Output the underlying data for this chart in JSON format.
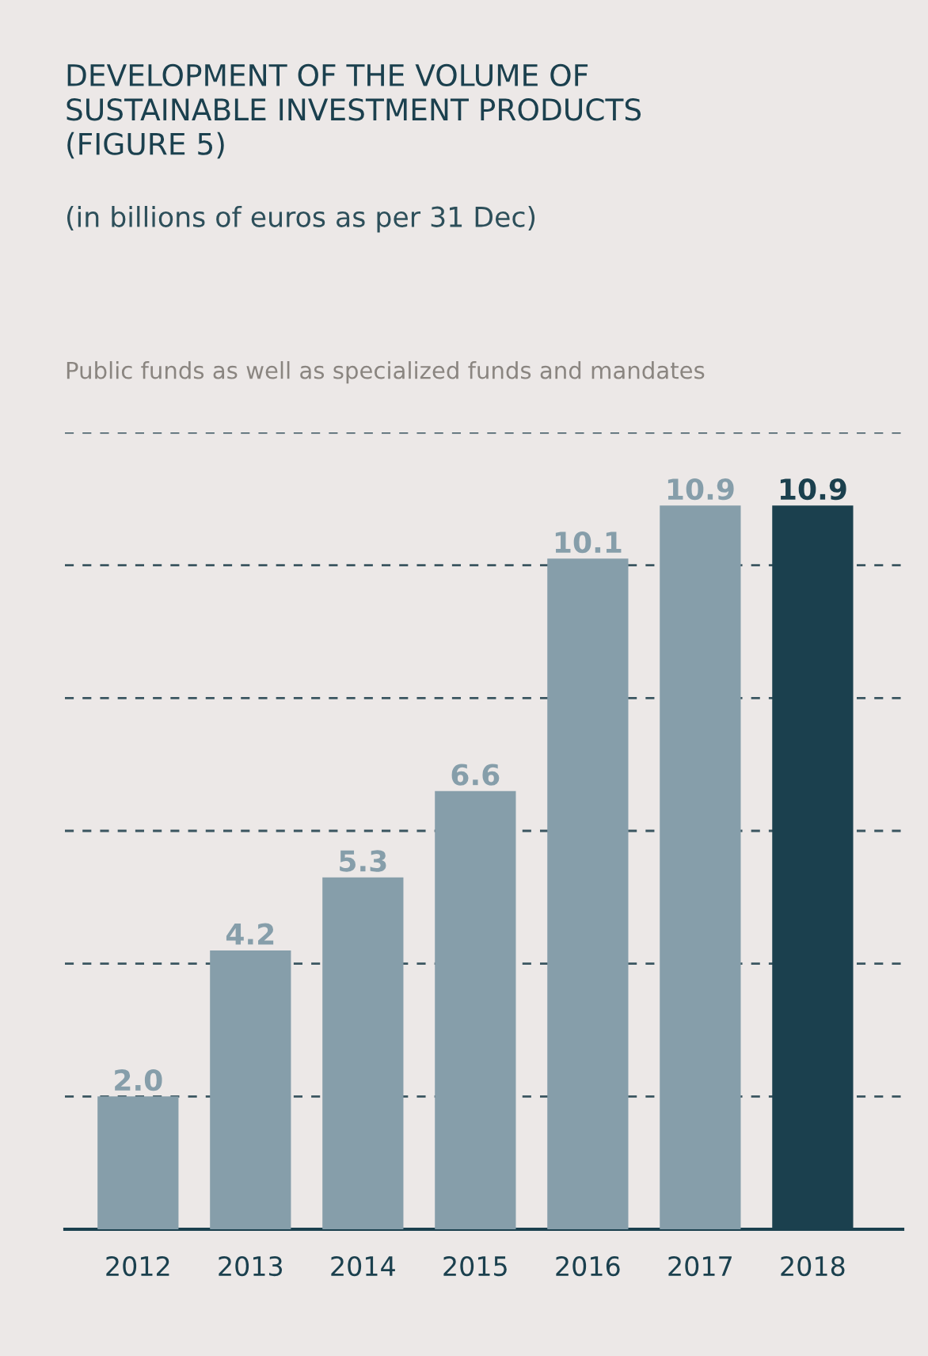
{
  "chart_data": {
    "type": "bar",
    "title": "DEVELOPMENT OF THE VOLUME OF\nSUSTAINABLE INVESTMENT PRODUCTS\n(FIGURE 5)",
    "subtitle": "(in billions of euros as per 31 Dec)",
    "annotations": [
      "Public funds as well as specialized funds and mandates"
    ],
    "categories": [
      "2012",
      "2013",
      "2014",
      "2015",
      "2016",
      "2017",
      "2018"
    ],
    "values": [
      2.0,
      4.2,
      5.3,
      6.6,
      10.1,
      10.9,
      10.9
    ],
    "colors": [
      "#869eaa",
      "#869eaa",
      "#869eaa",
      "#869eaa",
      "#869eaa",
      "#869eaa",
      "#1b404e"
    ],
    "ylim": [
      0,
      12
    ],
    "yticks": [
      {
        "value": 2,
        "label": null
      },
      {
        "value": 4,
        "label": null
      },
      {
        "value": 6,
        "label": null
      },
      {
        "value": 8,
        "label": null
      },
      {
        "value": 10,
        "label": null
      },
      {
        "value": 12,
        "label": null
      }
    ],
    "value_labels": [
      "2.0",
      "4.2",
      "5.3",
      "6.6",
      "10.1",
      "10.9",
      "10.9"
    ],
    "grid": "y",
    "line_style": "dashed",
    "tick_labels": "x"
  }
}
